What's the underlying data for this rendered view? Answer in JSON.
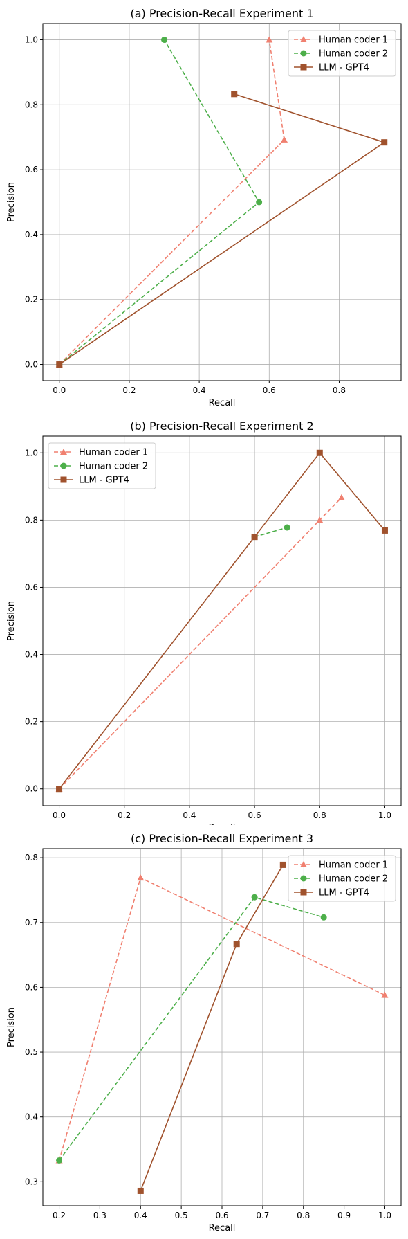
{
  "chart_data": [
    {
      "type": "line",
      "title": "(a) Precision-Recall Experiment 1",
      "xlabel": "Recall",
      "ylabel": "Precision",
      "xlim": [
        -0.047,
        0.977
      ],
      "ylim": [
        -0.05,
        1.05
      ],
      "xticks": [
        0,
        0.2,
        0.4,
        0.6,
        0.8
      ],
      "xtick_labels": [
        "0.0",
        "0.2",
        "0.4",
        "0.6",
        "0.8"
      ],
      "yticks": [
        0,
        0.2,
        0.4,
        0.6,
        0.8,
        1.0
      ],
      "ytick_labels": [
        "0.0",
        "0.2",
        "0.4",
        "0.6",
        "0.8",
        "1.0"
      ],
      "grid": true,
      "legend": "top-right",
      "series": [
        {
          "name": "Human coder 1",
          "color": "#f08070",
          "marker": "triangle",
          "dashed": true,
          "x": [
            0,
            0.643,
            0.6
          ],
          "y": [
            0,
            0.692,
            1.0
          ]
        },
        {
          "name": "Human coder 2",
          "color": "#4daf4a",
          "marker": "circle",
          "dashed": true,
          "x": [
            0,
            0.571,
            0.3
          ],
          "y": [
            0,
            0.5,
            1.0
          ]
        },
        {
          "name": "LLM - GPT4",
          "color": "#a0522d",
          "marker": "square",
          "dashed": false,
          "x": [
            0,
            0.929,
            0.5
          ],
          "y": [
            0,
            0.684,
            0.833
          ]
        }
      ]
    },
    {
      "type": "line",
      "title": "(b) Precision-Recall Experiment 2",
      "xlabel": "Recall",
      "ylabel": "Precision",
      "xlim": [
        -0.05,
        1.05
      ],
      "ylim": [
        -0.05,
        1.05
      ],
      "xticks": [
        0,
        0.2,
        0.4,
        0.6,
        0.8,
        1.0
      ],
      "xtick_labels": [
        "0.0",
        "0.2",
        "0.4",
        "0.6",
        "0.8",
        "1.0"
      ],
      "yticks": [
        0,
        0.2,
        0.4,
        0.6,
        0.8,
        1.0
      ],
      "ytick_labels": [
        "0.0",
        "0.2",
        "0.4",
        "0.6",
        "0.8",
        "1.0"
      ],
      "grid": true,
      "legend": "top-left",
      "series": [
        {
          "name": "Human coder 1",
          "color": "#f08070",
          "marker": "triangle",
          "dashed": true,
          "x": [
            0,
            0.8,
            0.867
          ],
          "y": [
            0,
            0.8,
            0.867
          ]
        },
        {
          "name": "Human coder 2",
          "color": "#4daf4a",
          "marker": "circle",
          "dashed": true,
          "x": [
            0.6,
            0.7
          ],
          "y": [
            0.75,
            0.778
          ]
        },
        {
          "name": "LLM - GPT4",
          "color": "#a0522d",
          "marker": "square",
          "dashed": false,
          "x": [
            0,
            0.6,
            0.8,
            1.0
          ],
          "y": [
            0,
            0.75,
            1.0,
            0.769
          ]
        }
      ]
    },
    {
      "type": "line",
      "title": "(c) Precision-Recall Experiment 3",
      "xlabel": "Recall",
      "ylabel": "Precision",
      "xlim": [
        0.16,
        1.04
      ],
      "ylim": [
        0.263,
        0.814
      ],
      "xticks": [
        0.2,
        0.3,
        0.4,
        0.5,
        0.6,
        0.7,
        0.8,
        0.9,
        1.0
      ],
      "xtick_labels": [
        "0.2",
        "0.3",
        "0.4",
        "0.5",
        "0.6",
        "0.7",
        "0.8",
        "0.9",
        "1.0"
      ],
      "yticks": [
        0.3,
        0.4,
        0.5,
        0.6,
        0.7,
        0.8
      ],
      "ytick_labels": [
        "0.3",
        "0.4",
        "0.5",
        "0.6",
        "0.7",
        "0.8"
      ],
      "grid": true,
      "legend": "top-right",
      "series": [
        {
          "name": "Human coder 1",
          "color": "#f08070",
          "marker": "triangle",
          "dashed": true,
          "x": [
            0.2,
            0.4,
            1.0
          ],
          "y": [
            0.333,
            0.769,
            0.588
          ]
        },
        {
          "name": "Human coder 2",
          "color": "#4daf4a",
          "marker": "circle",
          "dashed": true,
          "x": [
            0.2,
            0.68,
            0.85
          ],
          "y": [
            0.333,
            0.739,
            0.708
          ]
        },
        {
          "name": "LLM - GPT4",
          "color": "#a0522d",
          "marker": "square",
          "dashed": false,
          "x": [
            0.4,
            0.636,
            0.75
          ],
          "y": [
            0.286,
            0.667,
            0.789
          ]
        }
      ]
    }
  ]
}
